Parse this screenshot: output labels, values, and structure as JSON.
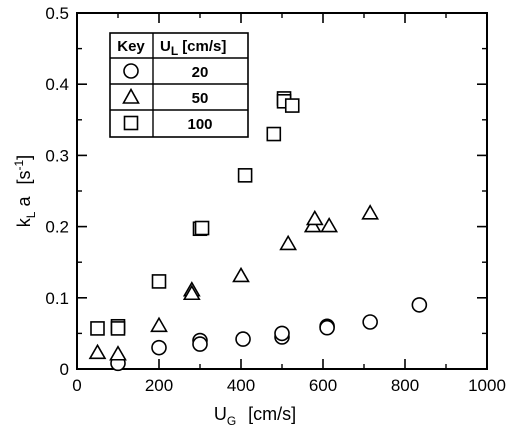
{
  "chart_data": {
    "type": "scatter",
    "title": "",
    "xlabel": {
      "main": "U",
      "sub": "G",
      "unit": "[cm/s]"
    },
    "ylabel": {
      "main": "k",
      "sub": "L",
      "rest": " a",
      "unit": "[s",
      "sup": "-1",
      "close": "]"
    },
    "xlim": [
      0,
      1000
    ],
    "ylim": [
      0,
      0.5
    ],
    "xticks": [
      0,
      200,
      400,
      600,
      800,
      1000
    ],
    "xtick_labels": [
      "0",
      "200",
      "400",
      "600",
      "800",
      "1000"
    ],
    "yticks": [
      0,
      0.1,
      0.2,
      0.3,
      0.4,
      0.5
    ],
    "ytick_labels": [
      "0",
      "0.1",
      "0.2",
      "0.3",
      "0.4",
      "0.5"
    ],
    "grid": false,
    "legend": {
      "placement": "top-left",
      "header_key": "Key",
      "header_u": "U",
      "header_u_sub": "L",
      "header_unit": "[cm/s]"
    },
    "series": [
      {
        "name": "20",
        "marker": "circle",
        "points": [
          [
            100,
            0.008
          ],
          [
            200,
            0.03
          ],
          [
            300,
            0.04
          ],
          [
            300,
            0.035
          ],
          [
            405,
            0.042
          ],
          [
            500,
            0.045
          ],
          [
            500,
            0.05
          ],
          [
            610,
            0.06
          ],
          [
            610,
            0.058
          ],
          [
            715,
            0.066
          ],
          [
            835,
            0.09
          ]
        ]
      },
      {
        "name": "50",
        "marker": "triangle",
        "points": [
          [
            50,
            0.022
          ],
          [
            100,
            0.02
          ],
          [
            200,
            0.06
          ],
          [
            280,
            0.11
          ],
          [
            280,
            0.105
          ],
          [
            400,
            0.13
          ],
          [
            515,
            0.175
          ],
          [
            575,
            0.2
          ],
          [
            580,
            0.21
          ],
          [
            615,
            0.2
          ],
          [
            715,
            0.218
          ]
        ]
      },
      {
        "name": "100",
        "marker": "square",
        "points": [
          [
            50,
            0.057
          ],
          [
            100,
            0.06
          ],
          [
            100,
            0.057
          ],
          [
            200,
            0.123
          ],
          [
            300,
            0.197
          ],
          [
            305,
            0.198
          ],
          [
            410,
            0.272
          ],
          [
            480,
            0.33
          ],
          [
            505,
            0.38
          ],
          [
            505,
            0.376
          ],
          [
            525,
            0.37
          ]
        ]
      }
    ]
  }
}
